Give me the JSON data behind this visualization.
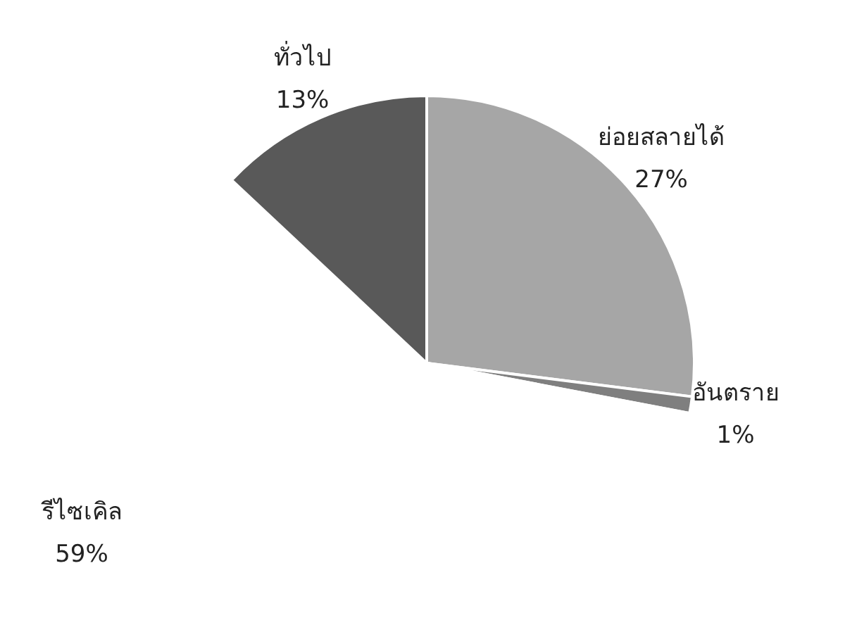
{
  "chart_data": {
    "type": "pie",
    "categories": [
      "ย่อยสลายได้",
      "อันตราย",
      "รีไซเคิล",
      "ทั่วไป"
    ],
    "values": [
      27,
      1,
      59,
      13
    ],
    "value_labels": [
      "27%",
      "1%",
      "59%",
      "13%"
    ],
    "colors": [
      "#a6a6a6",
      "#7f7f7f",
      "#ffffff",
      "#595959"
    ]
  }
}
